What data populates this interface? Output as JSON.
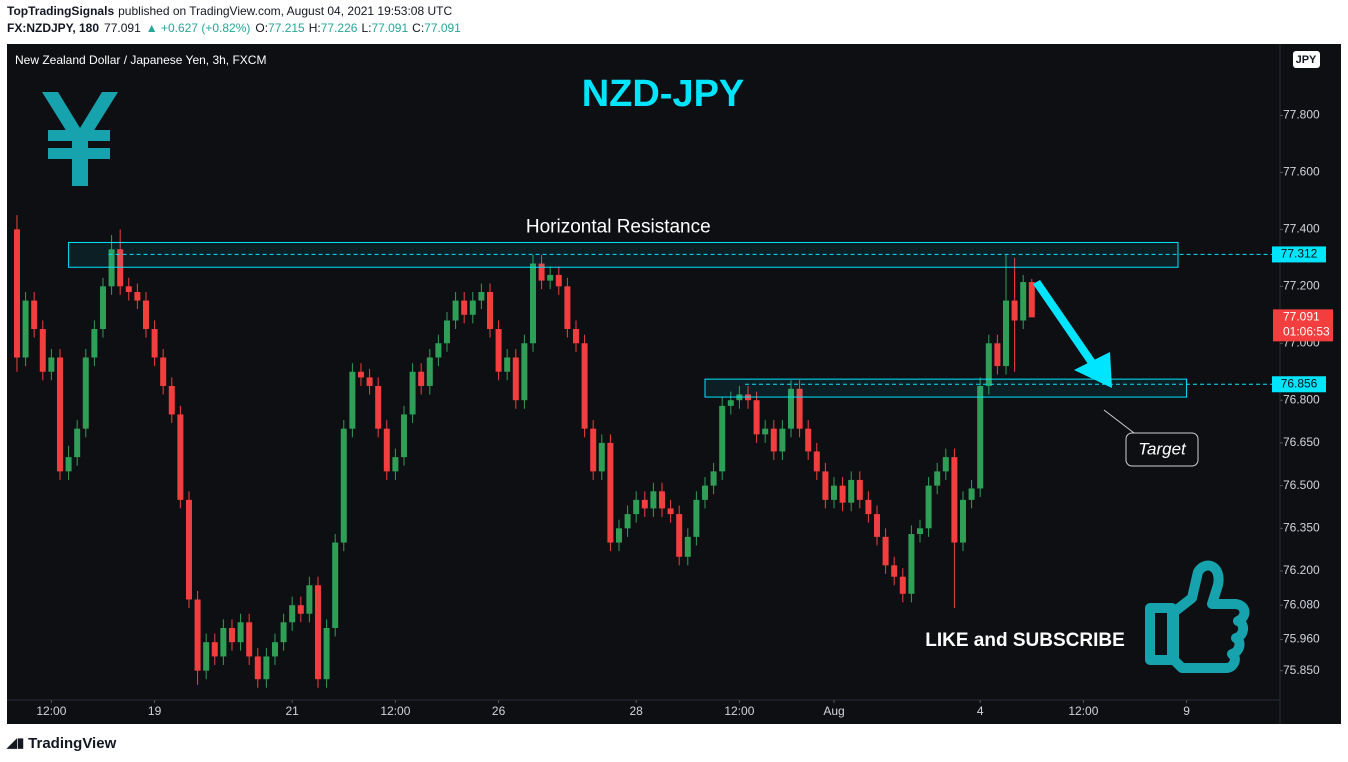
{
  "header": {
    "author": "TopTradingSignals",
    "published": "published on TradingView.com, August 04, 2021 19:53:08 UTC",
    "symbol": "FX:NZDJPY, 180",
    "last": "77.091",
    "change": "▲ +0.627 (+0.82%)",
    "ohlc": [
      {
        "label": "O:",
        "value": "77.215"
      },
      {
        "label": "H:",
        "value": "77.226"
      },
      {
        "label": "L:",
        "value": "77.091"
      },
      {
        "label": "C:",
        "value": "77.091"
      }
    ]
  },
  "footer": {
    "brand": "TradingView"
  },
  "chart_data": {
    "type": "candlestick",
    "description": "New Zealand Dollar / Japanese Yen, 3h, FXCM",
    "title": "NZD-JPY",
    "currency": "JPY",
    "timer": "01:06:53",
    "up_color": "#2f9e57",
    "down_color": "#f23e3e",
    "level_color": "#00e5ff",
    "candles": {
      "open": [
        77.4,
        76.95,
        77.15,
        77.05,
        76.9,
        76.95,
        76.55,
        76.6,
        76.7,
        76.95,
        77.05,
        77.2,
        77.33,
        77.2,
        77.18,
        77.15,
        77.05,
        76.95,
        76.85,
        76.75,
        76.45,
        76.1,
        75.85,
        75.95,
        75.9,
        76.0,
        75.95,
        76.02,
        75.9,
        75.82,
        75.9,
        75.95,
        76.02,
        76.08,
        76.05,
        76.15,
        75.82,
        76.0,
        76.3,
        76.7,
        76.9,
        76.88,
        76.85,
        76.7,
        76.55,
        76.6,
        76.75,
        76.9,
        76.85,
        76.95,
        77.0,
        77.08,
        77.15,
        77.1,
        77.15,
        77.18,
        77.05,
        76.9,
        76.95,
        76.8,
        77.0,
        77.28,
        77.22,
        77.24,
        77.2,
        77.05,
        77.0,
        76.7,
        76.55,
        76.65,
        76.3,
        76.35,
        76.4,
        76.45,
        76.42,
        76.48,
        76.42,
        76.4,
        76.25,
        76.32,
        76.45,
        76.5,
        76.55,
        76.78,
        76.8,
        76.82,
        76.8,
        76.68,
        76.7,
        76.62,
        76.7,
        76.84,
        76.7,
        76.62,
        76.55,
        76.45,
        76.5,
        76.44,
        76.52,
        76.45,
        76.4,
        76.32,
        76.22,
        76.18,
        76.12,
        76.33,
        76.35,
        76.5,
        76.55,
        76.6,
        76.3,
        76.45,
        76.49,
        76.85,
        77.0,
        76.92,
        77.15,
        77.08,
        77.215
      ],
      "high": [
        77.45,
        77.18,
        77.18,
        77.08,
        76.98,
        76.98,
        76.64,
        76.73,
        76.98,
        77.08,
        77.23,
        77.38,
        77.4,
        77.23,
        77.21,
        77.18,
        77.08,
        76.98,
        76.88,
        76.78,
        76.48,
        76.13,
        75.98,
        75.98,
        76.03,
        76.03,
        76.05,
        76.05,
        75.93,
        75.93,
        75.98,
        76.05,
        76.11,
        76.11,
        76.18,
        76.18,
        76.03,
        76.33,
        76.73,
        76.93,
        76.93,
        76.91,
        76.88,
        76.73,
        76.63,
        76.78,
        76.93,
        76.93,
        76.98,
        77.03,
        77.11,
        77.18,
        77.18,
        77.18,
        77.21,
        77.21,
        77.08,
        76.98,
        76.98,
        77.03,
        77.31,
        77.31,
        77.27,
        77.27,
        77.23,
        77.08,
        77.03,
        76.73,
        76.68,
        76.68,
        76.38,
        76.43,
        76.48,
        76.48,
        76.51,
        76.51,
        76.45,
        76.43,
        76.35,
        76.48,
        76.53,
        76.58,
        76.81,
        76.83,
        76.85,
        76.85,
        76.83,
        76.73,
        76.73,
        76.73,
        76.87,
        76.87,
        76.73,
        76.65,
        76.58,
        76.53,
        76.53,
        76.55,
        76.55,
        76.48,
        76.43,
        76.35,
        76.25,
        76.21,
        76.36,
        76.38,
        76.53,
        76.58,
        76.63,
        76.63,
        76.48,
        76.52,
        76.88,
        77.03,
        77.03,
        77.31,
        77.3,
        77.24,
        77.226
      ],
      "low": [
        76.9,
        76.92,
        77.02,
        76.87,
        76.87,
        76.52,
        76.52,
        76.57,
        76.67,
        76.92,
        77.02,
        77.17,
        77.17,
        77.15,
        77.12,
        77.02,
        76.92,
        76.82,
        76.72,
        76.42,
        76.07,
        75.8,
        75.82,
        75.87,
        75.87,
        75.92,
        75.92,
        75.87,
        75.79,
        75.79,
        75.87,
        75.92,
        75.99,
        76.02,
        76.02,
        75.79,
        75.79,
        75.97,
        76.27,
        76.67,
        76.85,
        76.82,
        76.67,
        76.52,
        76.52,
        76.57,
        76.72,
        76.82,
        76.82,
        76.92,
        76.97,
        77.05,
        77.07,
        77.07,
        77.12,
        77.02,
        76.87,
        76.87,
        76.77,
        76.77,
        76.97,
        77.19,
        77.19,
        77.17,
        77.02,
        76.97,
        76.67,
        76.52,
        76.52,
        76.27,
        76.27,
        76.32,
        76.37,
        76.39,
        76.39,
        76.39,
        76.37,
        76.22,
        76.22,
        76.29,
        76.42,
        76.47,
        76.52,
        76.75,
        76.77,
        76.77,
        76.65,
        76.65,
        76.59,
        76.59,
        76.67,
        76.67,
        76.59,
        76.52,
        76.42,
        76.42,
        76.41,
        76.41,
        76.42,
        76.37,
        76.29,
        76.19,
        76.15,
        76.09,
        76.09,
        76.3,
        76.32,
        76.47,
        76.52,
        76.07,
        76.27,
        76.42,
        76.46,
        76.82,
        76.89,
        76.89,
        76.9,
        77.05,
        77.091
      ],
      "close": [
        76.95,
        77.15,
        77.05,
        76.9,
        76.95,
        76.55,
        76.6,
        76.7,
        76.95,
        77.05,
        77.2,
        77.33,
        77.2,
        77.18,
        77.15,
        77.05,
        76.95,
        76.85,
        76.75,
        76.45,
        76.1,
        75.85,
        75.95,
        75.9,
        76.0,
        75.95,
        76.02,
        75.9,
        75.82,
        75.9,
        75.95,
        76.02,
        76.08,
        76.05,
        76.15,
        75.82,
        76.0,
        76.3,
        76.7,
        76.9,
        76.88,
        76.85,
        76.7,
        76.55,
        76.6,
        76.75,
        76.9,
        76.85,
        76.95,
        77.0,
        77.08,
        77.15,
        77.1,
        77.15,
        77.18,
        77.05,
        76.9,
        76.95,
        76.8,
        77.0,
        77.28,
        77.22,
        77.24,
        77.2,
        77.05,
        77.0,
        76.7,
        76.55,
        76.65,
        76.3,
        76.35,
        76.4,
        76.45,
        76.42,
        76.48,
        76.42,
        76.4,
        76.25,
        76.32,
        76.45,
        76.5,
        76.55,
        76.78,
        76.8,
        76.82,
        76.8,
        76.68,
        76.7,
        76.62,
        76.7,
        76.84,
        76.7,
        76.62,
        76.55,
        76.45,
        76.5,
        76.44,
        76.52,
        76.45,
        76.4,
        76.32,
        76.22,
        76.18,
        76.12,
        76.33,
        76.35,
        76.5,
        76.55,
        76.6,
        76.3,
        76.45,
        76.49,
        76.85,
        77.0,
        76.92,
        77.15,
        77.08,
        77.215,
        77.091
      ]
    },
    "xlim": [
      -1.16,
      146.86
    ],
    "xticks": [
      {
        "value": 4,
        "label": "12:00"
      },
      {
        "value": 16,
        "label": "19"
      },
      {
        "value": 32,
        "label": "21"
      },
      {
        "value": 44,
        "label": "12:00"
      },
      {
        "value": 56,
        "label": "26"
      },
      {
        "value": 72,
        "label": "28"
      },
      {
        "value": 84,
        "label": "12:00"
      },
      {
        "value": 95,
        "label": "Aug"
      },
      {
        "value": 112,
        "label": "4"
      },
      {
        "value": 124,
        "label": "12:00"
      },
      {
        "value": 136,
        "label": "9"
      }
    ],
    "ylim": [
      75.747,
      78.03
    ],
    "yticks": [
      {
        "value": 77.8,
        "label": "77.800"
      },
      {
        "value": 77.6,
        "label": "77.600"
      },
      {
        "value": 77.4,
        "label": "77.400"
      },
      {
        "value": 77.2,
        "label": "77.200"
      },
      {
        "value": 77.0,
        "label": "77.000"
      },
      {
        "value": 76.8,
        "label": "76.800"
      },
      {
        "value": 76.65,
        "label": "76.650"
      },
      {
        "value": 76.5,
        "label": "76.500"
      },
      {
        "value": 76.35,
        "label": "76.350"
      },
      {
        "value": 76.2,
        "label": "76.200"
      },
      {
        "value": 76.08,
        "label": "76.080"
      },
      {
        "value": 75.96,
        "label": "75.960"
      },
      {
        "value": 75.85,
        "label": "75.850"
      }
    ],
    "levels": [
      77.312,
      76.856
    ],
    "zones": [
      {
        "xlim": [
          6,
          135
        ],
        "ylim": [
          77.267,
          77.354
        ],
        "label": "Horizontal Resistance"
      },
      {
        "xlim": [
          80,
          136
        ],
        "ylim": [
          76.811,
          76.874
        ]
      }
    ],
    "annotations": {
      "target": "Target",
      "cta": "LIKE and SUBSCRIBE"
    }
  }
}
